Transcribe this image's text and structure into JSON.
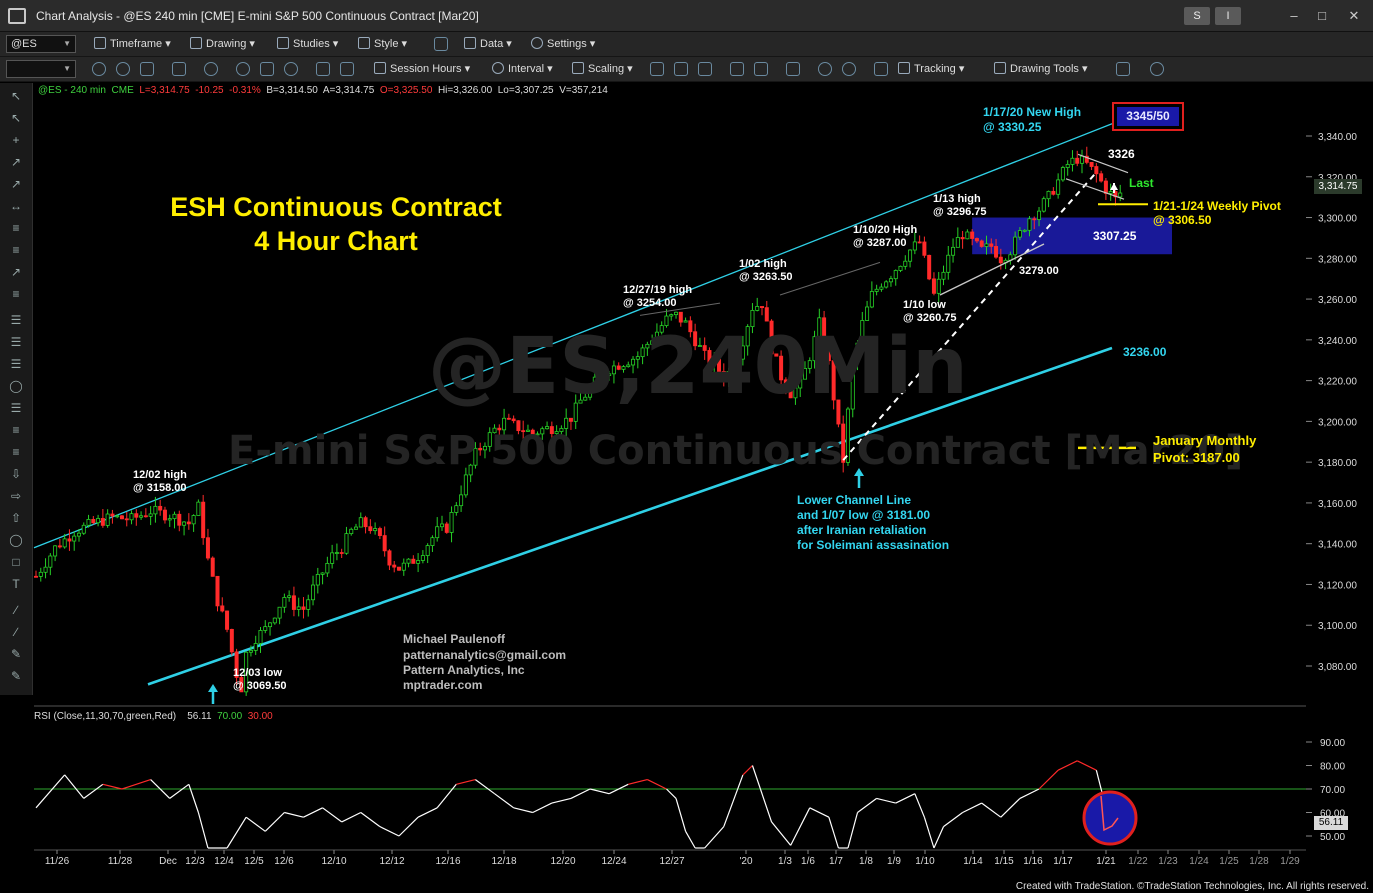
{
  "window": {
    "title": "Chart Analysis - @ES 240 min [CME] E-mini S&P 500 Continuous Contract [Mar20]",
    "btn_s": "S",
    "btn_i": "I"
  },
  "toolbar1": {
    "symbol": "@ES",
    "timeframe": "Timeframe",
    "drawing": "Drawing",
    "studies": "Studies",
    "style": "Style",
    "data": "Data",
    "settings": "Settings"
  },
  "toolbar2": {
    "session_hours": "Session Hours",
    "interval": "Interval",
    "scaling": "Scaling",
    "tracking": "Tracking",
    "drawing_tools": "Drawing Tools"
  },
  "status": {
    "symbol": "@ES - 240 min",
    "exchange": "CME",
    "last": "L=3,314.75",
    "change": "-10.25",
    "pct": "-0.31%",
    "bid": "B=3,314.50",
    "ask": "A=3,314.75",
    "open": "O=3,325.50",
    "high": "Hi=3,326.00",
    "low": "Lo=3,307.25",
    "volume": "V=357,214"
  },
  "watermark": {
    "symbol": "@ES,240Min",
    "description": "E-mini S&P 500 Continuous Contract [Mar20]"
  },
  "annotations": {
    "title_line1": "ESH Continuous Contract",
    "title_line2": "4 Hour Chart",
    "high_1202_a": "12/02 high",
    "high_1202_b": "@ 3158.00",
    "low_1203_a": "12/03 low",
    "low_1203_b": "@ 3069.50",
    "high_1227_a": "12/27/19 high",
    "high_1227_b": "@ 3254.00",
    "high_0102_a": "1/02 high",
    "high_0102_b": "@ 3263.50",
    "high_0110_a": "1/10/20 High",
    "high_0110_b": "@ 3287.00",
    "low_0110_a": "1/10 low",
    "low_0110_b": "@ 3260.75",
    "high_0113_a": "1/13 high",
    "high_0113_b": "@ 3296.75",
    "new_high_a": "1/17/20 New High",
    "new_high_b": "@ 3330.25",
    "target_box": "3345/50",
    "level_3326": "3326",
    "last": "Last",
    "weekly_pivot_a": "1/21-1/24 Weekly Pivot",
    "weekly_pivot_b": "@ 3306.50",
    "level_3307": "3307.25",
    "level_3279": "3279.00",
    "level_3236": "3236.00",
    "monthly_pivot_a": "January Monthly",
    "monthly_pivot_b": "Pivot: 3187.00",
    "channel_a": "Lower Channel Line",
    "channel_b": "and 1/07 low @ 3181.00",
    "channel_c": "after Iranian retaliation",
    "channel_d": "for Soleimani assasination",
    "author_1": "Michael Paulenoff",
    "author_2": "patternanalytics@gmail.com",
    "author_3": "Pattern Analytics, Inc",
    "author_4": "mptrader.com"
  },
  "rsi": {
    "label": "RSI (Close,11,30,70,green,Red)",
    "value": "56.11",
    "ob": "70.00",
    "os": "30.00",
    "tag": "56.11"
  },
  "price_tag": "3,314.75",
  "footer": "Created with TradeStation. ©TradeStation Technologies, Inc. All rights reserved.",
  "chart_data": {
    "type": "candlestick",
    "price_axis": {
      "range": [
        3062,
        3352
      ],
      "ticks": [
        3080,
        3100,
        3120,
        3140,
        3160,
        3180,
        3200,
        3220,
        3240,
        3260,
        3280,
        3300,
        3320,
        3340
      ],
      "tick_labels": [
        "3,080.00",
        "3,100.00",
        "3,120.00",
        "3,140.00",
        "3,160.00",
        "3,180.00",
        "3,200.00",
        "3,220.00",
        "3,240.00",
        "3,260.00",
        "3,280.00",
        "3,300.00",
        "3,320.00",
        "3,340.00"
      ]
    },
    "rsi_axis": {
      "range": [
        40,
        95
      ],
      "ticks": [
        50,
        60,
        70,
        80,
        90
      ],
      "tick_labels": [
        "50.00",
        "60.00",
        "70.00",
        "80.00",
        "90.00"
      ]
    },
    "x_labels": [
      "11/26",
      "11/28",
      "Dec",
      "12/3",
      "12/4",
      "12/5",
      "12/6",
      "12/10",
      "12/12",
      "12/16",
      "12/18",
      "12/20",
      "12/24",
      "12/27",
      "'20",
      "1/3",
      "1/6",
      "1/7",
      "1/8",
      "1/9",
      "1/10",
      "1/14",
      "1/15",
      "1/16",
      "1/17",
      "1/21",
      "1/22",
      "1/23",
      "1/24",
      "1/25",
      "1/28",
      "1/29"
    ],
    "price_path": [
      [
        0,
        3124
      ],
      [
        4,
        3138
      ],
      [
        8,
        3146
      ],
      [
        12,
        3150
      ],
      [
        16,
        3153
      ],
      [
        20,
        3152
      ],
      [
        24,
        3156
      ],
      [
        28,
        3154
      ],
      [
        32,
        3150
      ],
      [
        34,
        3158
      ],
      [
        36,
        3132
      ],
      [
        38,
        3112
      ],
      [
        40,
        3098
      ],
      [
        42,
        3076
      ],
      [
        43,
        3069.5
      ],
      [
        44,
        3086
      ],
      [
        46,
        3094
      ],
      [
        48,
        3098
      ],
      [
        50,
        3106
      ],
      [
        52,
        3114
      ],
      [
        54,
        3110
      ],
      [
        56,
        3108
      ],
      [
        58,
        3118
      ],
      [
        60,
        3126
      ],
      [
        62,
        3134
      ],
      [
        64,
        3138
      ],
      [
        66,
        3146
      ],
      [
        68,
        3150
      ],
      [
        70,
        3148
      ],
      [
        72,
        3142
      ],
      [
        74,
        3132
      ],
      [
        76,
        3128
      ],
      [
        78,
        3130
      ],
      [
        80,
        3134
      ],
      [
        82,
        3140
      ],
      [
        84,
        3146
      ],
      [
        86,
        3148
      ],
      [
        88,
        3160
      ],
      [
        90,
        3172
      ],
      [
        92,
        3184
      ],
      [
        94,
        3190
      ],
      [
        96,
        3196
      ],
      [
        98,
        3200
      ],
      [
        100,
        3198
      ],
      [
        102,
        3196
      ],
      [
        104,
        3194
      ],
      [
        106,
        3196
      ],
      [
        108,
        3197
      ],
      [
        110,
        3199
      ],
      [
        112,
        3202
      ],
      [
        114,
        3210
      ],
      [
        116,
        3216
      ],
      [
        118,
        3222
      ],
      [
        120,
        3226
      ],
      [
        122,
        3228
      ],
      [
        124,
        3230
      ],
      [
        126,
        3232
      ],
      [
        128,
        3238
      ],
      [
        130,
        3244
      ],
      [
        132,
        3250
      ],
      [
        134,
        3252
      ],
      [
        136,
        3248
      ],
      [
        138,
        3240
      ],
      [
        140,
        3232
      ],
      [
        142,
        3228
      ],
      [
        144,
        3222
      ],
      [
        146,
        3226
      ],
      [
        148,
        3240
      ],
      [
        150,
        3256
      ],
      [
        152,
        3258
      ],
      [
        154,
        3236
      ],
      [
        156,
        3222
      ],
      [
        158,
        3214
      ],
      [
        160,
        3218
      ],
      [
        162,
        3232
      ],
      [
        164,
        3248
      ],
      [
        166,
        3228
      ],
      [
        168,
        3196
      ],
      [
        169,
        3181
      ],
      [
        171,
        3228
      ],
      [
        173,
        3248
      ],
      [
        175,
        3262
      ],
      [
        177,
        3268
      ],
      [
        179,
        3272
      ],
      [
        181,
        3278
      ],
      [
        183,
        3284
      ],
      [
        185,
        3288
      ],
      [
        187,
        3270
      ],
      [
        188,
        3262
      ],
      [
        190,
        3274
      ],
      [
        192,
        3286
      ],
      [
        194,
        3292
      ],
      [
        196,
        3288
      ],
      [
        198,
        3284
      ],
      [
        200,
        3286
      ],
      [
        202,
        3280
      ],
      [
        204,
        3284
      ],
      [
        206,
        3292
      ],
      [
        208,
        3300
      ],
      [
        210,
        3304
      ],
      [
        212,
        3310
      ],
      [
        214,
        3318
      ],
      [
        216,
        3326
      ],
      [
        218,
        3329
      ],
      [
        220,
        3326
      ],
      [
        222,
        3321
      ],
      [
        224,
        3314
      ],
      [
        226,
        3309
      ],
      [
        228,
        3315
      ]
    ],
    "rsi_path": [
      [
        0,
        62
      ],
      [
        6,
        76
      ],
      [
        10,
        66
      ],
      [
        14,
        72
      ],
      [
        18,
        70
      ],
      [
        24,
        74
      ],
      [
        28,
        66
      ],
      [
        32,
        72
      ],
      [
        34,
        60
      ],
      [
        36,
        44
      ],
      [
        40,
        30
      ],
      [
        44,
        58
      ],
      [
        48,
        52
      ],
      [
        52,
        60
      ],
      [
        56,
        58
      ],
      [
        60,
        62
      ],
      [
        64,
        56
      ],
      [
        68,
        60
      ],
      [
        72,
        54
      ],
      [
        76,
        50
      ],
      [
        80,
        58
      ],
      [
        84,
        62
      ],
      [
        88,
        72
      ],
      [
        92,
        74
      ],
      [
        96,
        68
      ],
      [
        100,
        62
      ],
      [
        104,
        60
      ],
      [
        108,
        64
      ],
      [
        112,
        66
      ],
      [
        116,
        70
      ],
      [
        120,
        68
      ],
      [
        124,
        72
      ],
      [
        128,
        74
      ],
      [
        132,
        70
      ],
      [
        134,
        66
      ],
      [
        136,
        52
      ],
      [
        138,
        34
      ],
      [
        140,
        30
      ],
      [
        144,
        54
      ],
      [
        148,
        76
      ],
      [
        150,
        80
      ],
      [
        154,
        56
      ],
      [
        158,
        46
      ],
      [
        162,
        62
      ],
      [
        166,
        58
      ],
      [
        168,
        36
      ],
      [
        170,
        30
      ],
      [
        172,
        60
      ],
      [
        176,
        66
      ],
      [
        180,
        64
      ],
      [
        184,
        68
      ],
      [
        186,
        58
      ],
      [
        188,
        42
      ],
      [
        190,
        54
      ],
      [
        194,
        60
      ],
      [
        198,
        64
      ],
      [
        202,
        58
      ],
      [
        206,
        66
      ],
      [
        210,
        70
      ],
      [
        214,
        78
      ],
      [
        218,
        82
      ],
      [
        222,
        78
      ],
      [
        224,
        62
      ],
      [
        226,
        52
      ],
      [
        228,
        56
      ]
    ],
    "channel_upper": [
      [
        3138,
        3346
      ]
    ],
    "channel_lower": [
      [
        3072,
        3236
      ]
    ],
    "levels": {
      "weekly_pivot": 3306.5,
      "monthly_pivot": 3187.0,
      "support": 3279.0,
      "target": [
        3345,
        3350
      ],
      "last": 3314.75,
      "high": 3330.25,
      "low": 3181.0
    }
  }
}
